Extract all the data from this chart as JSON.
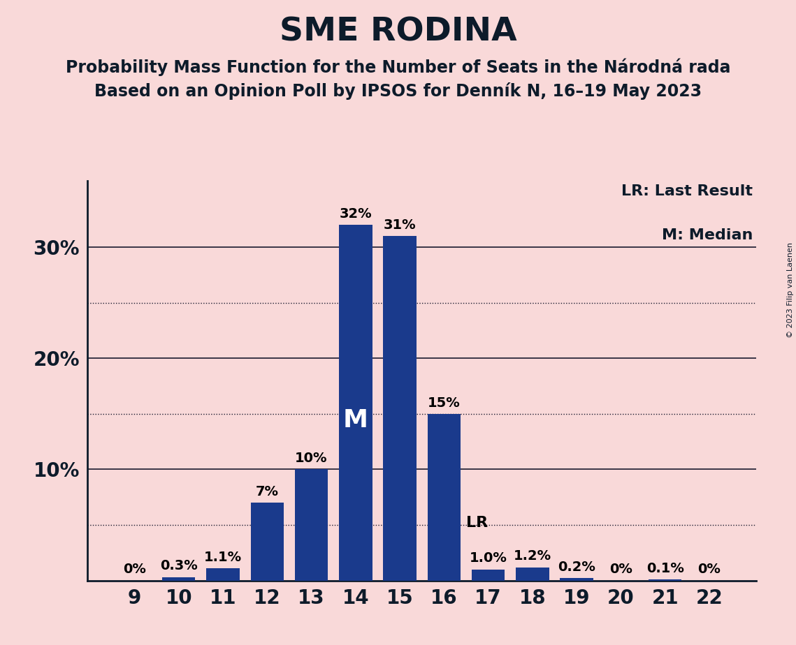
{
  "title": "SME RODINA",
  "subtitle1": "Probability Mass Function for the Number of Seats in the Národná rada",
  "subtitle2": "Based on an Opinion Poll by IPSOS for Denník N, 16–19 May 2023",
  "copyright": "© 2023 Filip van Laenen",
  "categories": [
    9,
    10,
    11,
    12,
    13,
    14,
    15,
    16,
    17,
    18,
    19,
    20,
    21,
    22
  ],
  "values": [
    0.0,
    0.3,
    1.1,
    7.0,
    10.0,
    32.0,
    31.0,
    15.0,
    1.0,
    1.2,
    0.2,
    0.0,
    0.1,
    0.0
  ],
  "labels": [
    "0%",
    "0.3%",
    "1.1%",
    "7%",
    "10%",
    "32%",
    "31%",
    "15%",
    "1.0%",
    "1.2%",
    "0.2%",
    "0%",
    "0.1%",
    "0%"
  ],
  "bar_color": "#1a3a8c",
  "background_color": "#f9d9d9",
  "median_bar": 14,
  "last_result_bar": 16,
  "ylim": [
    0,
    36
  ],
  "legend_lr": "LR: Last Result",
  "legend_m": "M: Median",
  "title_fontsize": 34,
  "subtitle_fontsize": 17,
  "bar_label_fontsize": 14,
  "axis_fontsize": 20,
  "solid_gridlines": [
    10,
    20,
    30
  ],
  "dotted_gridlines": [
    5,
    15,
    25
  ],
  "ytick_positions": [
    10,
    20,
    30
  ],
  "ytick_labels": [
    "10%",
    "20%",
    "30%"
  ]
}
